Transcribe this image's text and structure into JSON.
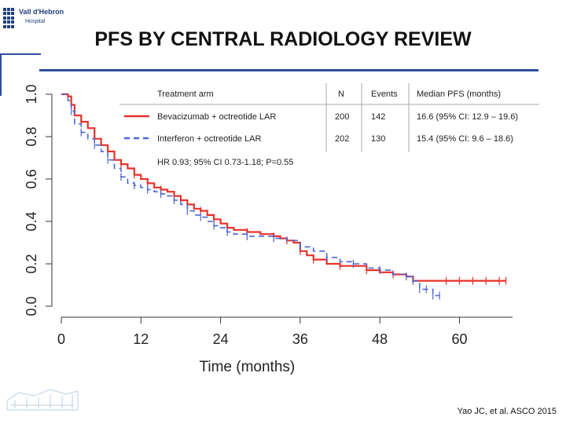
{
  "logo": {
    "name": "Vall d'Hebron",
    "sub": "Hospital"
  },
  "slide_title": "PFS BY CENTRAL RADIOLOGY REVIEW",
  "citation": "Yao JC, et al. ASCO 2015",
  "colors": {
    "accent": "#2c4f9a",
    "series1": "#e8322a",
    "series2": "#4a66d6",
    "table_divider": "#aaaaaa"
  },
  "chart_data": {
    "type": "line",
    "title": "",
    "xlabel": "Time (months)",
    "ylabel": "",
    "xlim": [
      0,
      68
    ],
    "ylim": [
      0,
      1
    ],
    "x_ticks": [
      "0",
      "12",
      "24",
      "36",
      "48",
      "60"
    ],
    "y_ticks": [
      "0.0",
      "0.2",
      "0.4",
      "0.6",
      "0.8",
      "1.0"
    ],
    "legend_table": {
      "headers": [
        "Treatment arm",
        "N",
        "Events",
        "Median PFS (months)"
      ],
      "rows": [
        [
          "Bevacizumab + octreotide LAR",
          "200",
          "142",
          "16.6 (95% CI: 12.9 – 19.6)"
        ],
        [
          "Interferon + octreotide LAR",
          "202",
          "130",
          "15.4 (95% CI: 9.6 – 18.6)"
        ]
      ],
      "note": "HR 0.93; 95% CI 0.73-1.18; P=0.55"
    },
    "series": [
      {
        "name": "Bevacizumab + octreotide LAR",
        "style": "solid",
        "x": [
          0,
          1,
          1.5,
          2,
          3,
          4,
          5,
          6,
          7,
          8,
          9,
          10,
          11,
          12,
          13,
          14,
          15,
          16,
          17,
          18,
          19,
          20,
          21,
          22,
          23,
          24,
          25,
          26,
          28,
          30,
          32,
          33,
          34,
          35,
          36,
          37,
          38,
          40,
          42,
          44,
          46,
          48,
          50,
          52,
          53,
          55,
          58,
          60,
          62,
          64,
          66,
          67
        ],
        "y": [
          1,
          0.99,
          0.95,
          0.9,
          0.87,
          0.84,
          0.79,
          0.76,
          0.73,
          0.69,
          0.67,
          0.65,
          0.62,
          0.6,
          0.58,
          0.56,
          0.55,
          0.54,
          0.52,
          0.5,
          0.48,
          0.46,
          0.45,
          0.43,
          0.41,
          0.39,
          0.37,
          0.36,
          0.35,
          0.34,
          0.33,
          0.32,
          0.31,
          0.3,
          0.26,
          0.24,
          0.22,
          0.2,
          0.19,
          0.19,
          0.17,
          0.16,
          0.15,
          0.14,
          0.12,
          0.12,
          0.12,
          0.12,
          0.12,
          0.12,
          0.12,
          0.12
        ]
      },
      {
        "name": "Interferon + octreotide LAR",
        "style": "dashed",
        "x": [
          0,
          1,
          1.5,
          2,
          3,
          4,
          5,
          6,
          7,
          8,
          9,
          10,
          11,
          12,
          13,
          14,
          15,
          16,
          17,
          18,
          19,
          20,
          21,
          22,
          23,
          24,
          25,
          26,
          28,
          30,
          32,
          34,
          36,
          38,
          40,
          42,
          44,
          46,
          48,
          50,
          52,
          53,
          54,
          55,
          56,
          57
        ],
        "y": [
          1,
          0.97,
          0.92,
          0.86,
          0.82,
          0.79,
          0.76,
          0.73,
          0.69,
          0.65,
          0.61,
          0.58,
          0.57,
          0.56,
          0.55,
          0.54,
          0.53,
          0.52,
          0.5,
          0.48,
          0.45,
          0.43,
          0.42,
          0.4,
          0.38,
          0.37,
          0.35,
          0.34,
          0.33,
          0.33,
          0.32,
          0.31,
          0.28,
          0.26,
          0.23,
          0.21,
          0.2,
          0.18,
          0.17,
          0.15,
          0.14,
          0.12,
          0.08,
          0.08,
          0.05,
          0.05
        ]
      }
    ]
  }
}
